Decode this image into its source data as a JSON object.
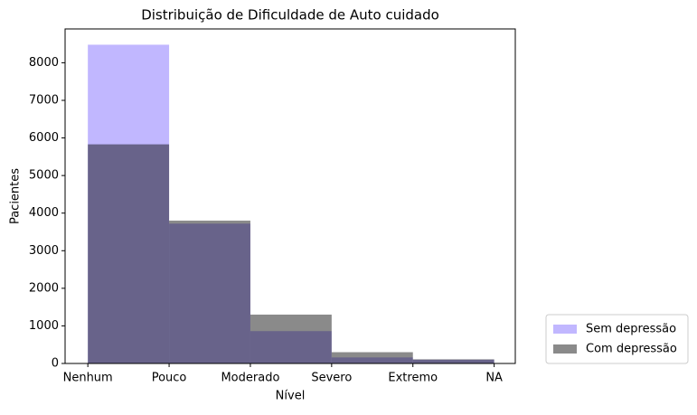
{
  "chart_data": {
    "type": "histogram",
    "title": "Distribuição de Dificuldade de Auto cuidado",
    "xlabel": "Nível",
    "ylabel": "Pacientes",
    "bins": [
      0,
      1,
      2,
      3,
      4,
      5
    ],
    "series": [
      {
        "name": "Sem depressão",
        "color": "#8470ff",
        "opacity": 0.5,
        "values": [
          8480,
          3720,
          860,
          160,
          100
        ]
      },
      {
        "name": "Com depressão",
        "color": "#000000",
        "opacity": 0.46,
        "values": [
          5830,
          3800,
          1300,
          300,
          110
        ]
      }
    ],
    "xlim": [
      -0.28,
      5.26
    ],
    "xticks": [
      {
        "value": 0,
        "label": "Nenhum"
      },
      {
        "value": 1,
        "label": "Pouco"
      },
      {
        "value": 2,
        "label": "Moderado"
      },
      {
        "value": 3,
        "label": "Severo"
      },
      {
        "value": 4,
        "label": "Extremo"
      },
      {
        "value": 5,
        "label": "NA"
      }
    ],
    "ylim": [
      0,
      8900
    ],
    "yticks": [
      0,
      1000,
      2000,
      3000,
      4000,
      5000,
      6000,
      7000,
      8000
    ],
    "legend": "outside-lower-right"
  }
}
